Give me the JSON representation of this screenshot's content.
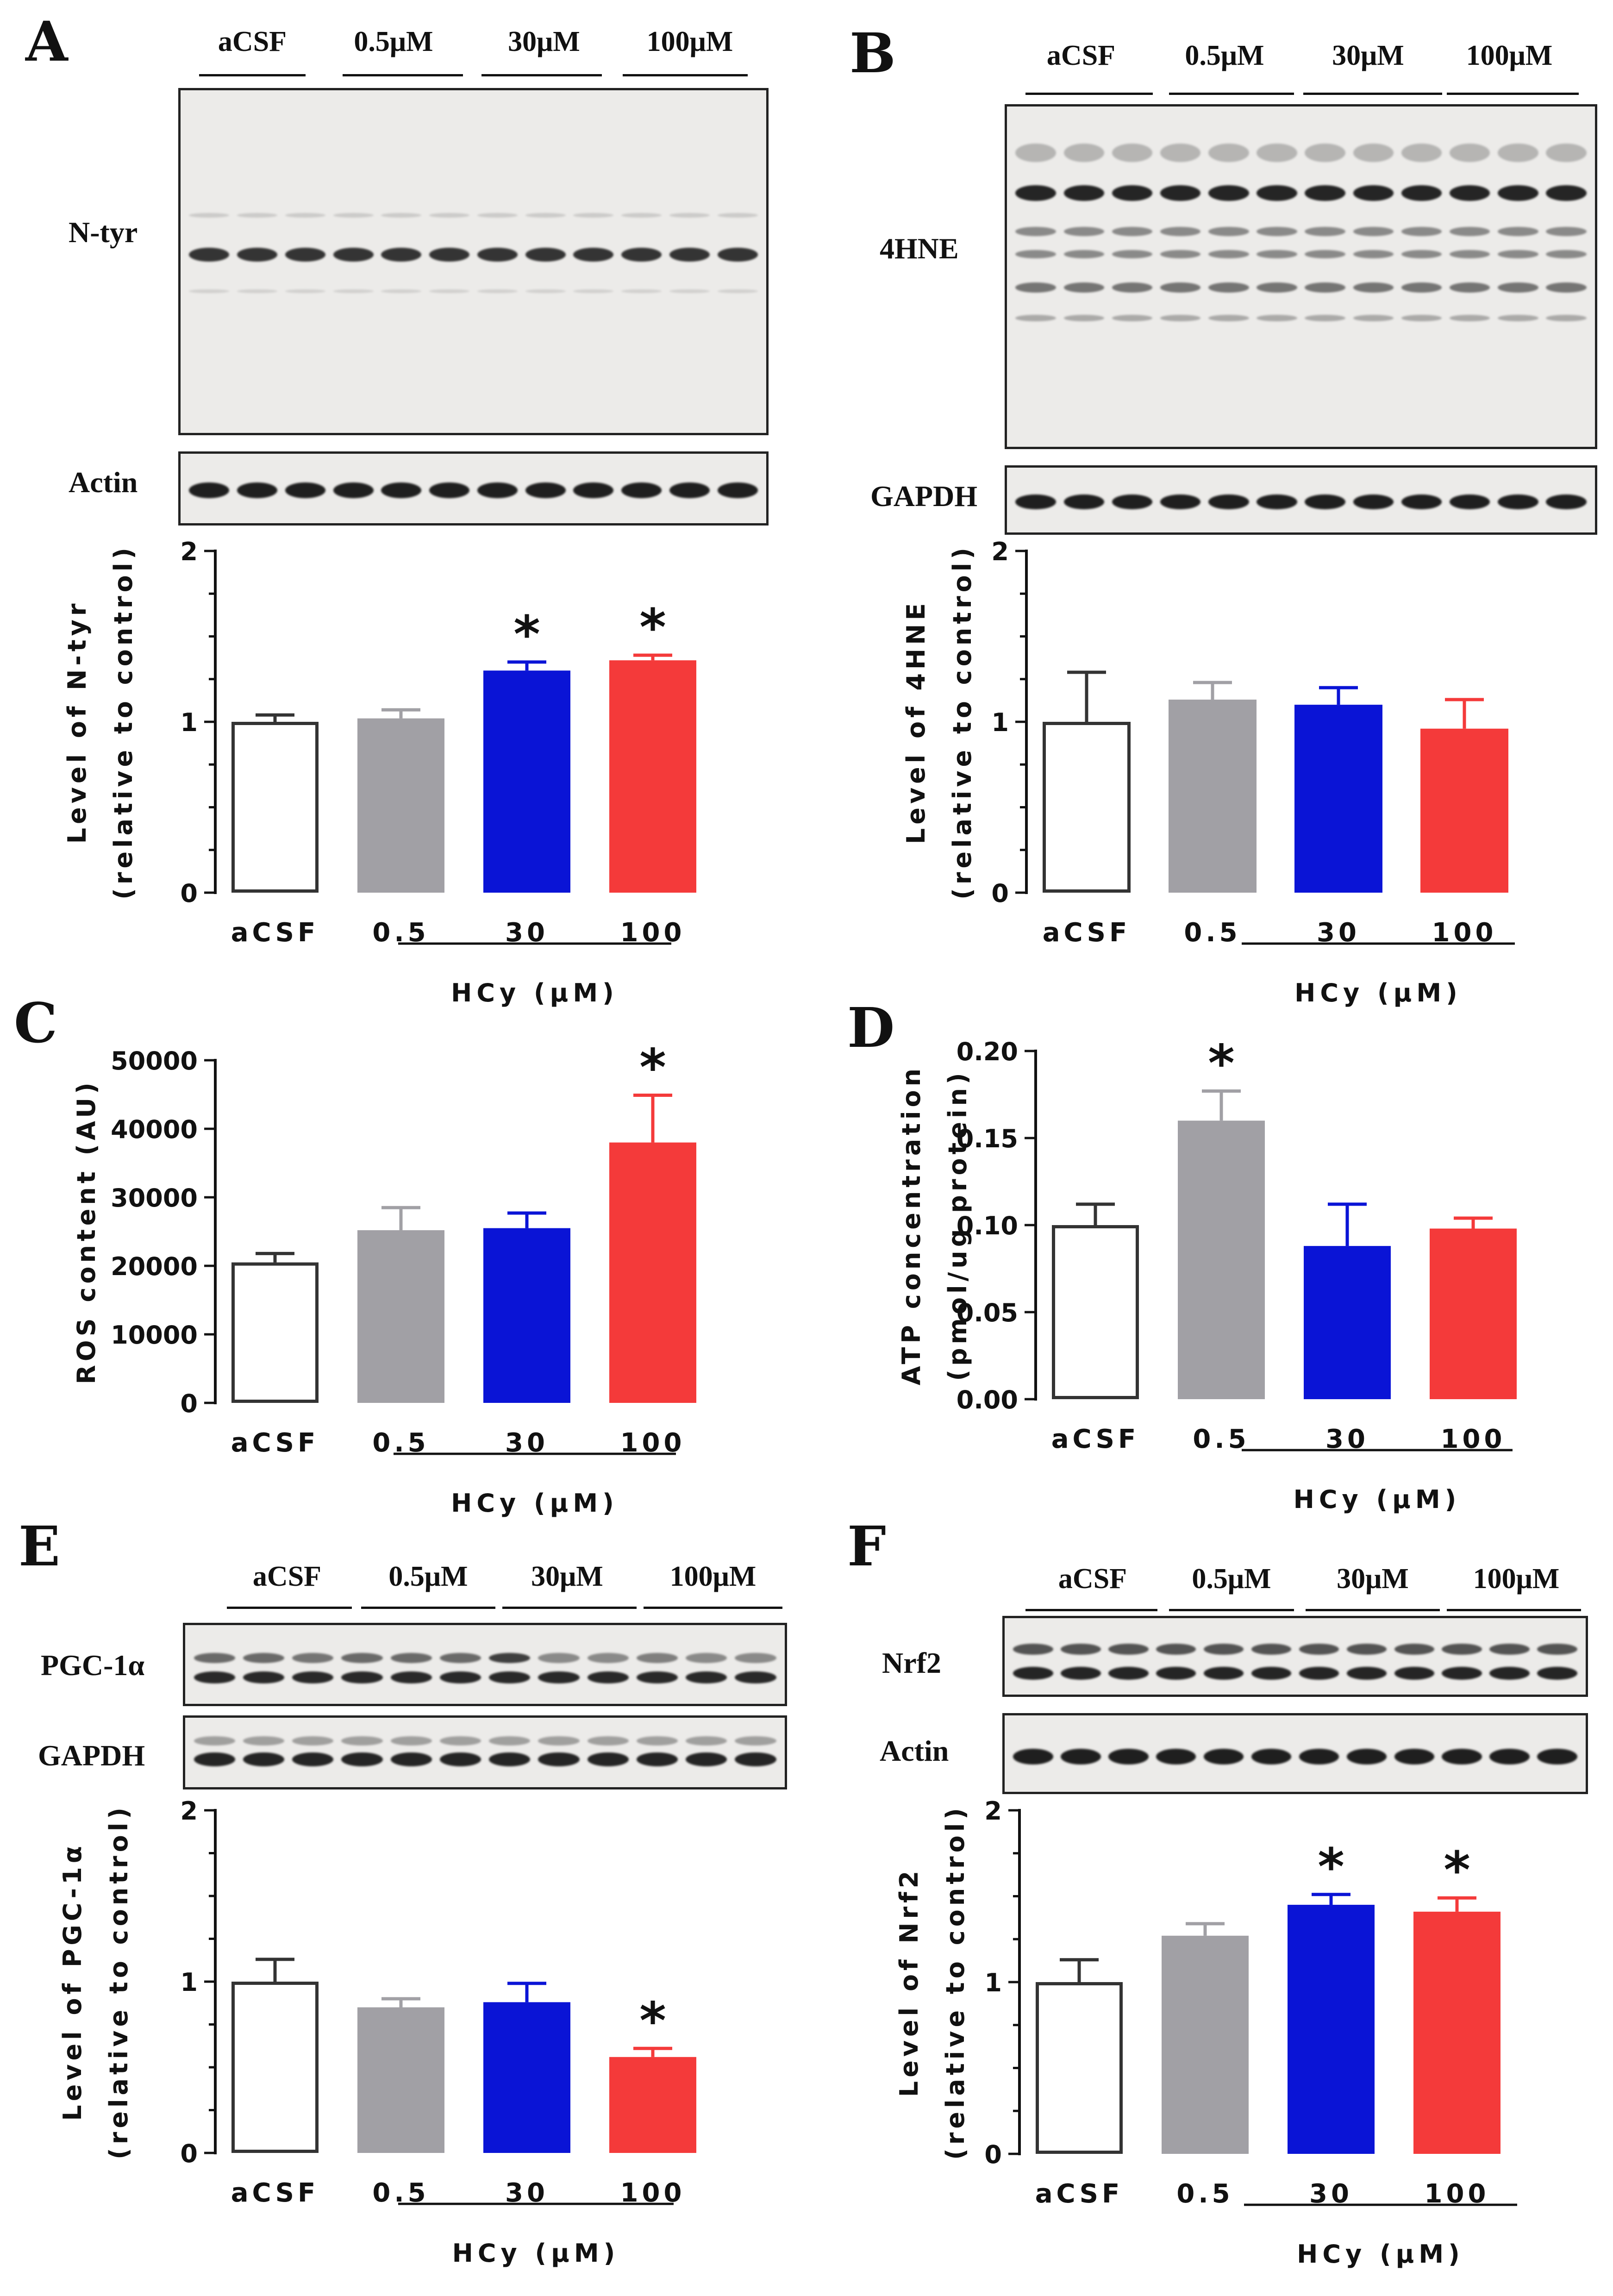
{
  "colors": {
    "acsf": "#ffffff",
    "c05": "#a1a0a5",
    "c30": "#0a14d6",
    "c100": "#f43a3a",
    "axis": "#111111",
    "edge": "#333333"
  },
  "panel_labels": {
    "A": "A",
    "B": "B",
    "C": "C",
    "D": "D",
    "E": "E",
    "F": "F"
  },
  "blot_groups": [
    "aCSF",
    "0.5μM",
    "30μM",
    "100μM"
  ],
  "blots": {
    "A": {
      "target": "N-tyr",
      "loading": "Actin"
    },
    "B": {
      "target": "4HNE",
      "loading": "GAPDH"
    },
    "E": {
      "target": "PGC-1α",
      "loading": "GAPDH"
    },
    "F": {
      "target": "Nrf2",
      "loading": "Actin"
    }
  },
  "chart_data": [
    {
      "id": "A",
      "type": "bar",
      "categories": [
        "aCSF",
        "0.5",
        "30",
        "100"
      ],
      "values": [
        1.0,
        1.02,
        1.3,
        1.36
      ],
      "errors": [
        0.04,
        0.05,
        0.05,
        0.03
      ],
      "sig": [
        "",
        "",
        "*",
        "*"
      ],
      "ylim": [
        0,
        2
      ],
      "yticks": [
        "0",
        "1",
        "2"
      ],
      "ylabel": "Level of N-tyr",
      "ylabel2": "(relative to control)",
      "xlabel": "HCy (μM)"
    },
    {
      "id": "B",
      "type": "bar",
      "categories": [
        "aCSF",
        "0.5",
        "30",
        "100"
      ],
      "values": [
        1.0,
        1.13,
        1.1,
        0.96
      ],
      "errors": [
        0.29,
        0.1,
        0.1,
        0.17
      ],
      "sig": [
        "",
        "",
        "",
        ""
      ],
      "ylim": [
        0,
        2
      ],
      "yticks": [
        "0",
        "1",
        "2"
      ],
      "ylabel": "Level of 4HNE",
      "ylabel2": "(relative to control)",
      "xlabel": "HCy (μM)"
    },
    {
      "id": "C",
      "type": "bar",
      "categories": [
        "aCSF",
        "0.5",
        "30",
        "100"
      ],
      "values": [
        20500,
        25200,
        25500,
        38000
      ],
      "errors": [
        1300,
        3300,
        2200,
        6900
      ],
      "sig": [
        "",
        "",
        "",
        "*"
      ],
      "ylim": [
        0,
        50000
      ],
      "yticks": [
        "0",
        "10000",
        "20000",
        "30000",
        "40000",
        "50000"
      ],
      "ylabel": "ROS content (AU)",
      "ylabel2": "",
      "xlabel": "HCy (μM)"
    },
    {
      "id": "D",
      "type": "bar",
      "categories": [
        "aCSF",
        "0.5",
        "30",
        "100"
      ],
      "values": [
        0.1,
        0.16,
        0.088,
        0.098
      ],
      "errors": [
        0.012,
        0.017,
        0.024,
        0.006
      ],
      "sig": [
        "",
        "*",
        "",
        ""
      ],
      "ylim": [
        0,
        0.2
      ],
      "yticks": [
        "0.00",
        "0.05",
        "0.10",
        "0.15",
        "0.20"
      ],
      "ylabel": "ATP concentration",
      "ylabel2": "(pmol/ug protein)",
      "xlabel": "HCy (μM)"
    },
    {
      "id": "E",
      "type": "bar",
      "categories": [
        "aCSF",
        "0.5",
        "30",
        "100"
      ],
      "values": [
        1.0,
        0.85,
        0.88,
        0.56
      ],
      "errors": [
        0.13,
        0.05,
        0.11,
        0.05
      ],
      "sig": [
        "",
        "",
        "",
        "*"
      ],
      "ylim": [
        0,
        2
      ],
      "yticks": [
        "0",
        "1",
        "2"
      ],
      "ylabel": "Level of PGC-1α",
      "ylabel2": "(relative to control)",
      "xlabel": "HCy (μM)"
    },
    {
      "id": "F",
      "type": "bar",
      "categories": [
        "aCSF",
        "0.5",
        "30",
        "100"
      ],
      "values": [
        1.0,
        1.27,
        1.45,
        1.41
      ],
      "errors": [
        0.13,
        0.07,
        0.06,
        0.08
      ],
      "sig": [
        "",
        "",
        "*",
        "*"
      ],
      "ylim": [
        0,
        2
      ],
      "yticks": [
        "0",
        "1",
        "2"
      ],
      "ylabel": "Level of Nrf2",
      "ylabel2": "(relative to control)",
      "xlabel": "HCy (μM)"
    }
  ]
}
